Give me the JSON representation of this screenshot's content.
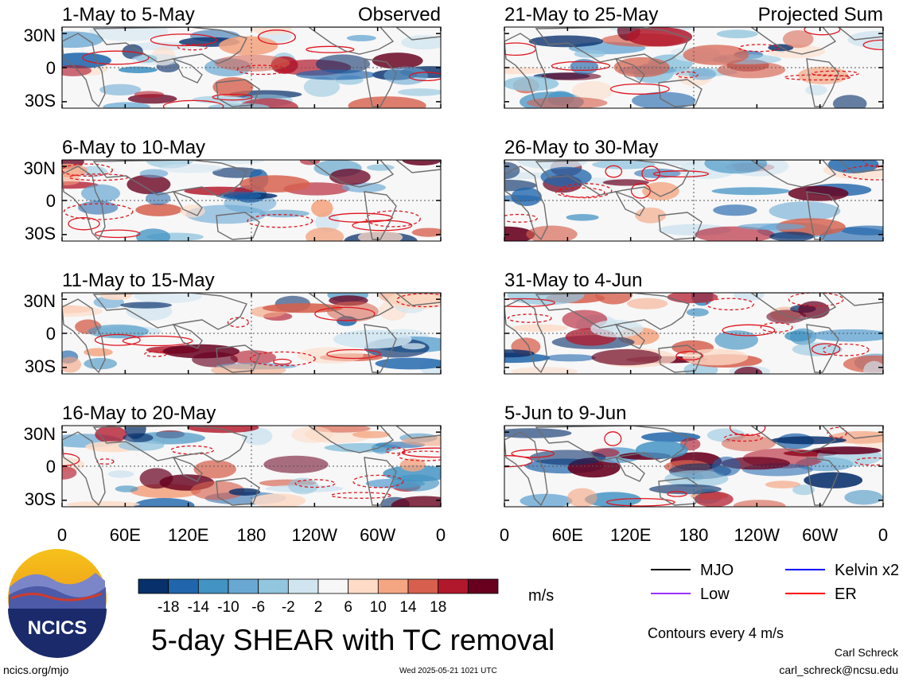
{
  "chart_data": {
    "type": "heatmap",
    "title": "5-day SHEAR with TC removal",
    "units": "m/s",
    "contour_note": "Contours every 4 m/s",
    "columns": [
      {
        "header": "Observed",
        "panels": [
          "1-May to 5-May",
          "6-May to 10-May",
          "11-May to 15-May",
          "16-May to 20-May"
        ]
      },
      {
        "header": "Projected Sum",
        "panels": [
          "21-May to 25-May",
          "26-May to 30-May",
          "31-May to 4-Jun",
          "5-Jun to 9-Jun"
        ]
      }
    ],
    "x_ticks": [
      "0",
      "60E",
      "120E",
      "180",
      "120W",
      "60W",
      "0"
    ],
    "y_ticks": [
      "30N",
      "0",
      "30S"
    ],
    "colorbar": {
      "tick_labels": [
        "-18",
        "-14",
        "-10",
        "-6",
        "-2",
        "2",
        "6",
        "10",
        "14",
        "18"
      ],
      "colors": [
        "#08306b",
        "#2166ac",
        "#4393c3",
        "#6aa8d4",
        "#92c5de",
        "#d1e5f0",
        "#f7f7f7",
        "#fddbc7",
        "#f4a582",
        "#d6604d",
        "#b2182b",
        "#67001f"
      ]
    },
    "legend": [
      {
        "name": "MJO",
        "color": "#000000"
      },
      {
        "name": "Kelvin x2",
        "color": "#0000ff"
      },
      {
        "name": "Low",
        "color": "#9933ff"
      },
      {
        "name": "ER",
        "color": "#ff0000"
      }
    ]
  },
  "org": {
    "logo_text": "NCICS",
    "url": "ncics.org/mjo",
    "author": "Carl Schreck",
    "email": "carl_schreck@ncsu.edu",
    "timestamp": "Wed 2025-05-21 1021 UTC"
  }
}
